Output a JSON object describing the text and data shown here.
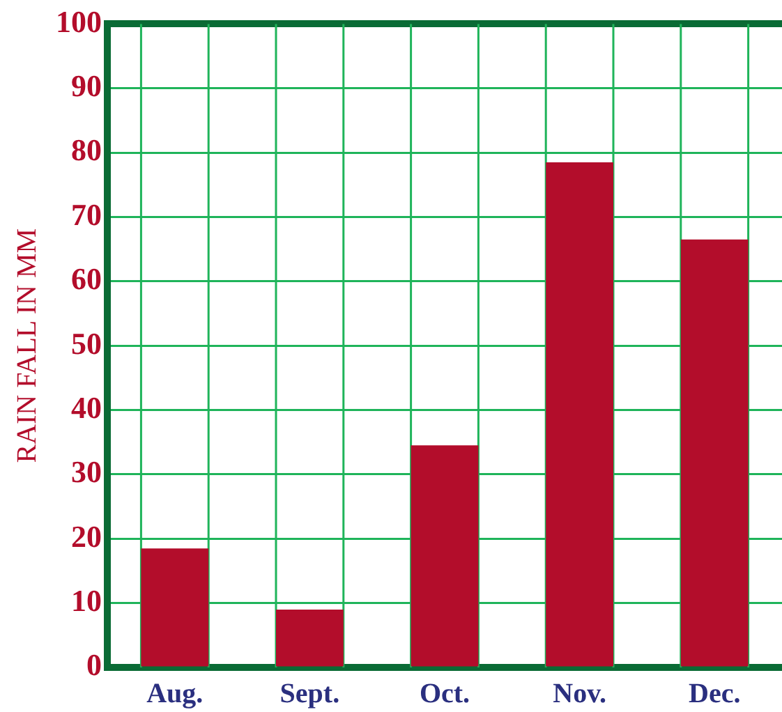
{
  "chart_data": {
    "type": "bar",
    "ylabel": "RAIN FALL IN MM",
    "categories": [
      "Aug.",
      "Sept.",
      "Oct.",
      "Nov.",
      "Dec."
    ],
    "values": [
      18.5,
      9,
      34.5,
      78.5,
      66.5
    ],
    "color": "#b30d2b",
    "ylim": [
      0,
      100
    ],
    "yticks": [
      0,
      10,
      20,
      30,
      40,
      50,
      60,
      70,
      80,
      90,
      100
    ],
    "grid": true
  }
}
